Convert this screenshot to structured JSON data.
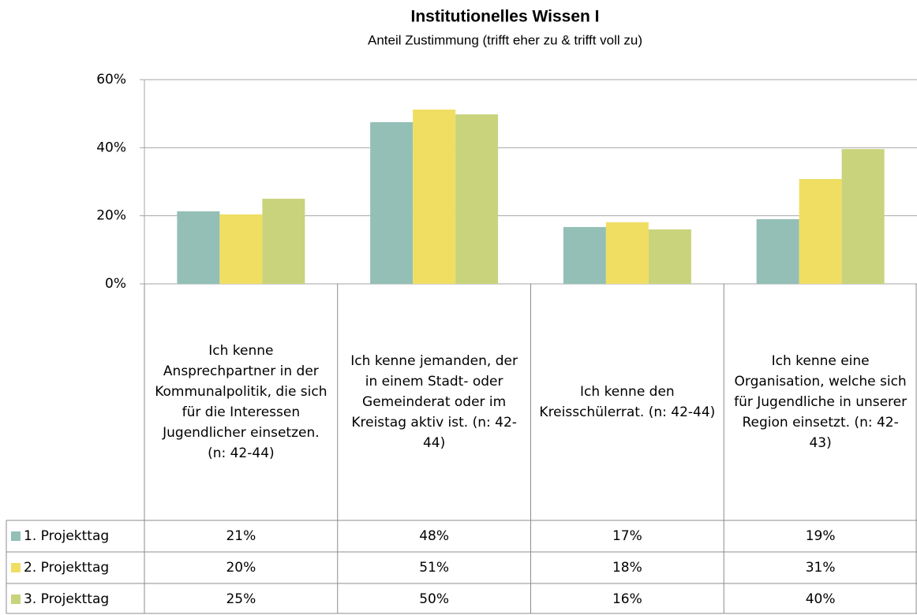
{
  "chart_data": {
    "type": "bar",
    "title": "Institutionelles Wissen I",
    "subtitle": "Anteil Zustimmung (trifft eher zu & trifft voll zu)",
    "categories": [
      "Ich kenne Ansprechpartner in der Kommunalpolitik, die sich für die Interessen Jugendlicher einsetzen. (n: 42-44)",
      "Ich kenne jemanden, der in einem Stadt- oder Gemeinderat oder im Kreistag aktiv ist. (n: 42-44)",
      "Ich kenne den Kreisschülerrat. (n: 42-44)",
      "Ich kenne eine Organisation, welche sich für Jugendliche in unserer Region einsetzt. (n: 42-43)"
    ],
    "series": [
      {
        "name": "1. Projekttag",
        "color": "#93bfb6",
        "values": [
          21.3,
          47.5,
          16.7,
          19.0
        ],
        "value_labels": [
          "21%",
          "48%",
          "17%",
          "19%"
        ]
      },
      {
        "name": "2. Projekttag",
        "color": "#f0de63",
        "values": [
          20.4,
          51.2,
          18.1,
          30.8
        ],
        "value_labels": [
          "20%",
          "51%",
          "18%",
          "31%"
        ]
      },
      {
        "name": "3. Projekttag",
        "color": "#c9d37c",
        "values": [
          25.0,
          49.8,
          16.0,
          39.6
        ],
        "value_labels": [
          "25%",
          "50%",
          "16%",
          "40%"
        ]
      }
    ],
    "ylim": [
      0,
      60
    ],
    "yticks": [
      {
        "value": 0,
        "label": "0%"
      },
      {
        "value": 20,
        "label": "20%"
      },
      {
        "value": 40,
        "label": "40%"
      },
      {
        "value": 60,
        "label": "60%"
      }
    ],
    "grid": true
  }
}
